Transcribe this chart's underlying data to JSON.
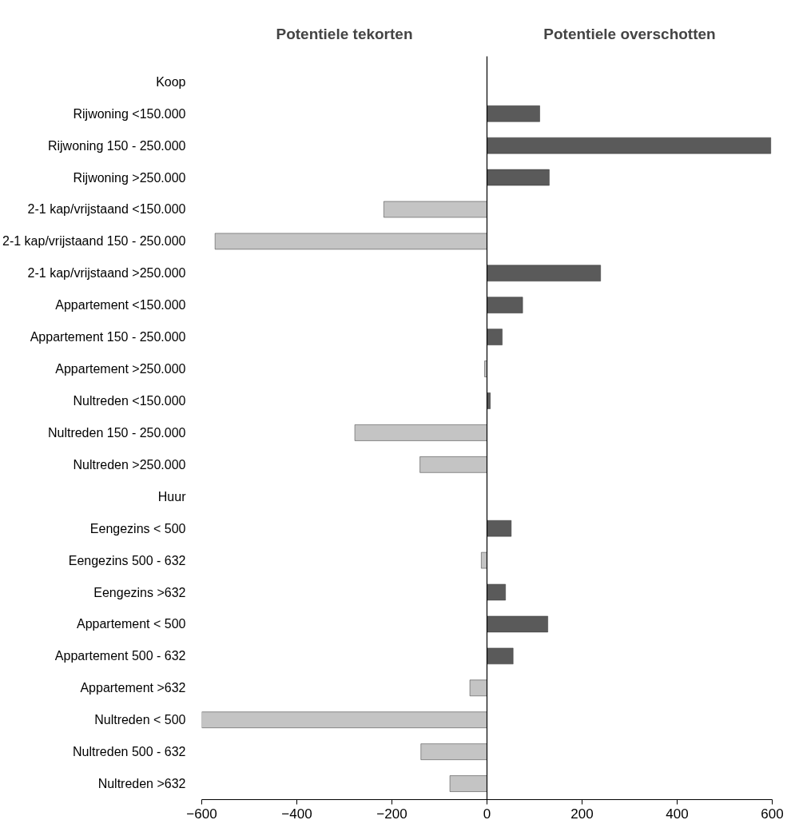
{
  "chart_data": {
    "type": "bar",
    "orientation": "horizontal",
    "categories": [
      "Koop",
      "Rijwoning <150.000",
      "Rijwoning 150 - 250.000",
      "Rijwoning >250.000",
      "2-1 kap/vrijstaand <150.000",
      "2-1 kap/vrijstaand 150 - 250.000",
      "2-1 kap/vrijstaand >250.000",
      "Appartement <150.000",
      "Appartement 150 - 250.000",
      "Appartement >250.000",
      "Nultreden <150.000",
      "Nultreden 150 - 250.000",
      "Nultreden >250.000",
      "Huur",
      "Eengezins < 500",
      "Eengezins 500 - 632",
      "Eengezins >632",
      "Appartement < 500",
      "Appartement 500 - 632",
      "Appartement >632",
      "Nultreden < 500",
      "Nultreden 500 - 632",
      "Nultreden >632"
    ],
    "values": [
      null,
      111,
      597,
      131,
      -217,
      -572,
      239,
      75,
      32,
      -5,
      7,
      -278,
      -141,
      null,
      51,
      -12,
      39,
      128,
      55,
      -36,
      -600,
      -139,
      -78
    ],
    "colors": [
      null,
      "#5a5a5a",
      "#5a5a5a",
      "#5a5a5a",
      "#c4c4c4",
      "#c4c4c4",
      "#5a5a5a",
      "#5a5a5a",
      "#5a5a5a",
      "#c4c4c4",
      "#5a5a5a",
      "#c4c4c4",
      "#c4c4c4",
      null,
      "#5a5a5a",
      "#c4c4c4",
      "#5a5a5a",
      "#5a5a5a",
      "#5a5a5a",
      "#c4c4c4",
      "#c4c4c4",
      "#c4c4c4",
      "#c4c4c4"
    ],
    "annotations": [
      "Potentiele tekorten",
      "Potentiele overschotten"
    ],
    "xlim": [
      -600,
      600
    ],
    "xticks": [
      -600,
      -400,
      -200,
      0,
      200,
      400,
      600
    ],
    "ref_lines": [
      {
        "axis": "x",
        "value": 0,
        "color": "#000000"
      }
    ],
    "grid": false
  }
}
